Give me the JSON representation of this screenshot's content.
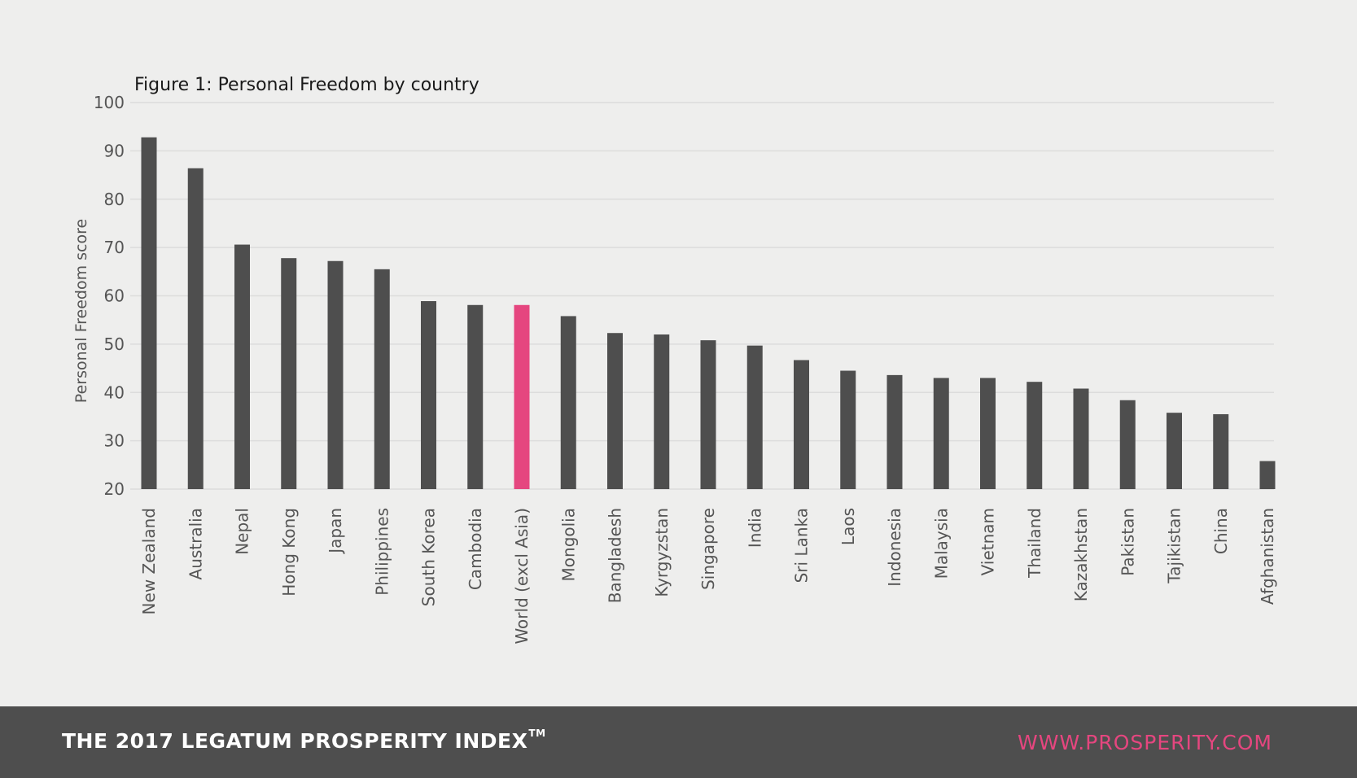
{
  "chart_data": {
    "type": "bar",
    "title": "Figure 1: Personal Freedom by country",
    "ylabel": "Personal Freedom score",
    "xlabel": "",
    "ylim": [
      20,
      100
    ],
    "yticks": [
      "100",
      "90",
      "80",
      "70",
      "60",
      "50",
      "40",
      "30",
      "20"
    ],
    "grid": true,
    "categories": [
      "New Zealand",
      "Australia",
      "Nepal",
      "Hong Kong",
      "Japan",
      "Philippines",
      "South Korea",
      "Cambodia",
      "World (excl Asia)",
      "Mongolia",
      "Bangladesh",
      "Kyrgyzstan",
      "Singapore",
      "India",
      "Sri Lanka",
      "Laos",
      "Indonesia",
      "Malaysia",
      "Vietnam",
      "Thailand",
      "Kazakhstan",
      "Pakistan",
      "Tajikistan",
      "China",
      "Afghanistan"
    ],
    "values": [
      92.8,
      86.4,
      70.6,
      67.8,
      67.2,
      65.5,
      58.9,
      58.1,
      58.1,
      55.8,
      52.3,
      52.0,
      50.8,
      49.7,
      46.7,
      44.5,
      43.6,
      43.0,
      43.0,
      42.2,
      40.8,
      38.4,
      35.8,
      35.5,
      25.8
    ],
    "highlight_category": "World (excl Asia)",
    "colors": {
      "bar": "#4e4e4e",
      "highlight": "#e5467f"
    }
  },
  "footer": {
    "brand": "THE 2017 LEGATUM PROSPERITY INDEX",
    "trademark": "TM",
    "url": "WWW.PROSPERITY.COM"
  },
  "colors": {
    "background": "#eeeeed",
    "footer_background": "#4e4e4e",
    "accent": "#e5467f"
  }
}
